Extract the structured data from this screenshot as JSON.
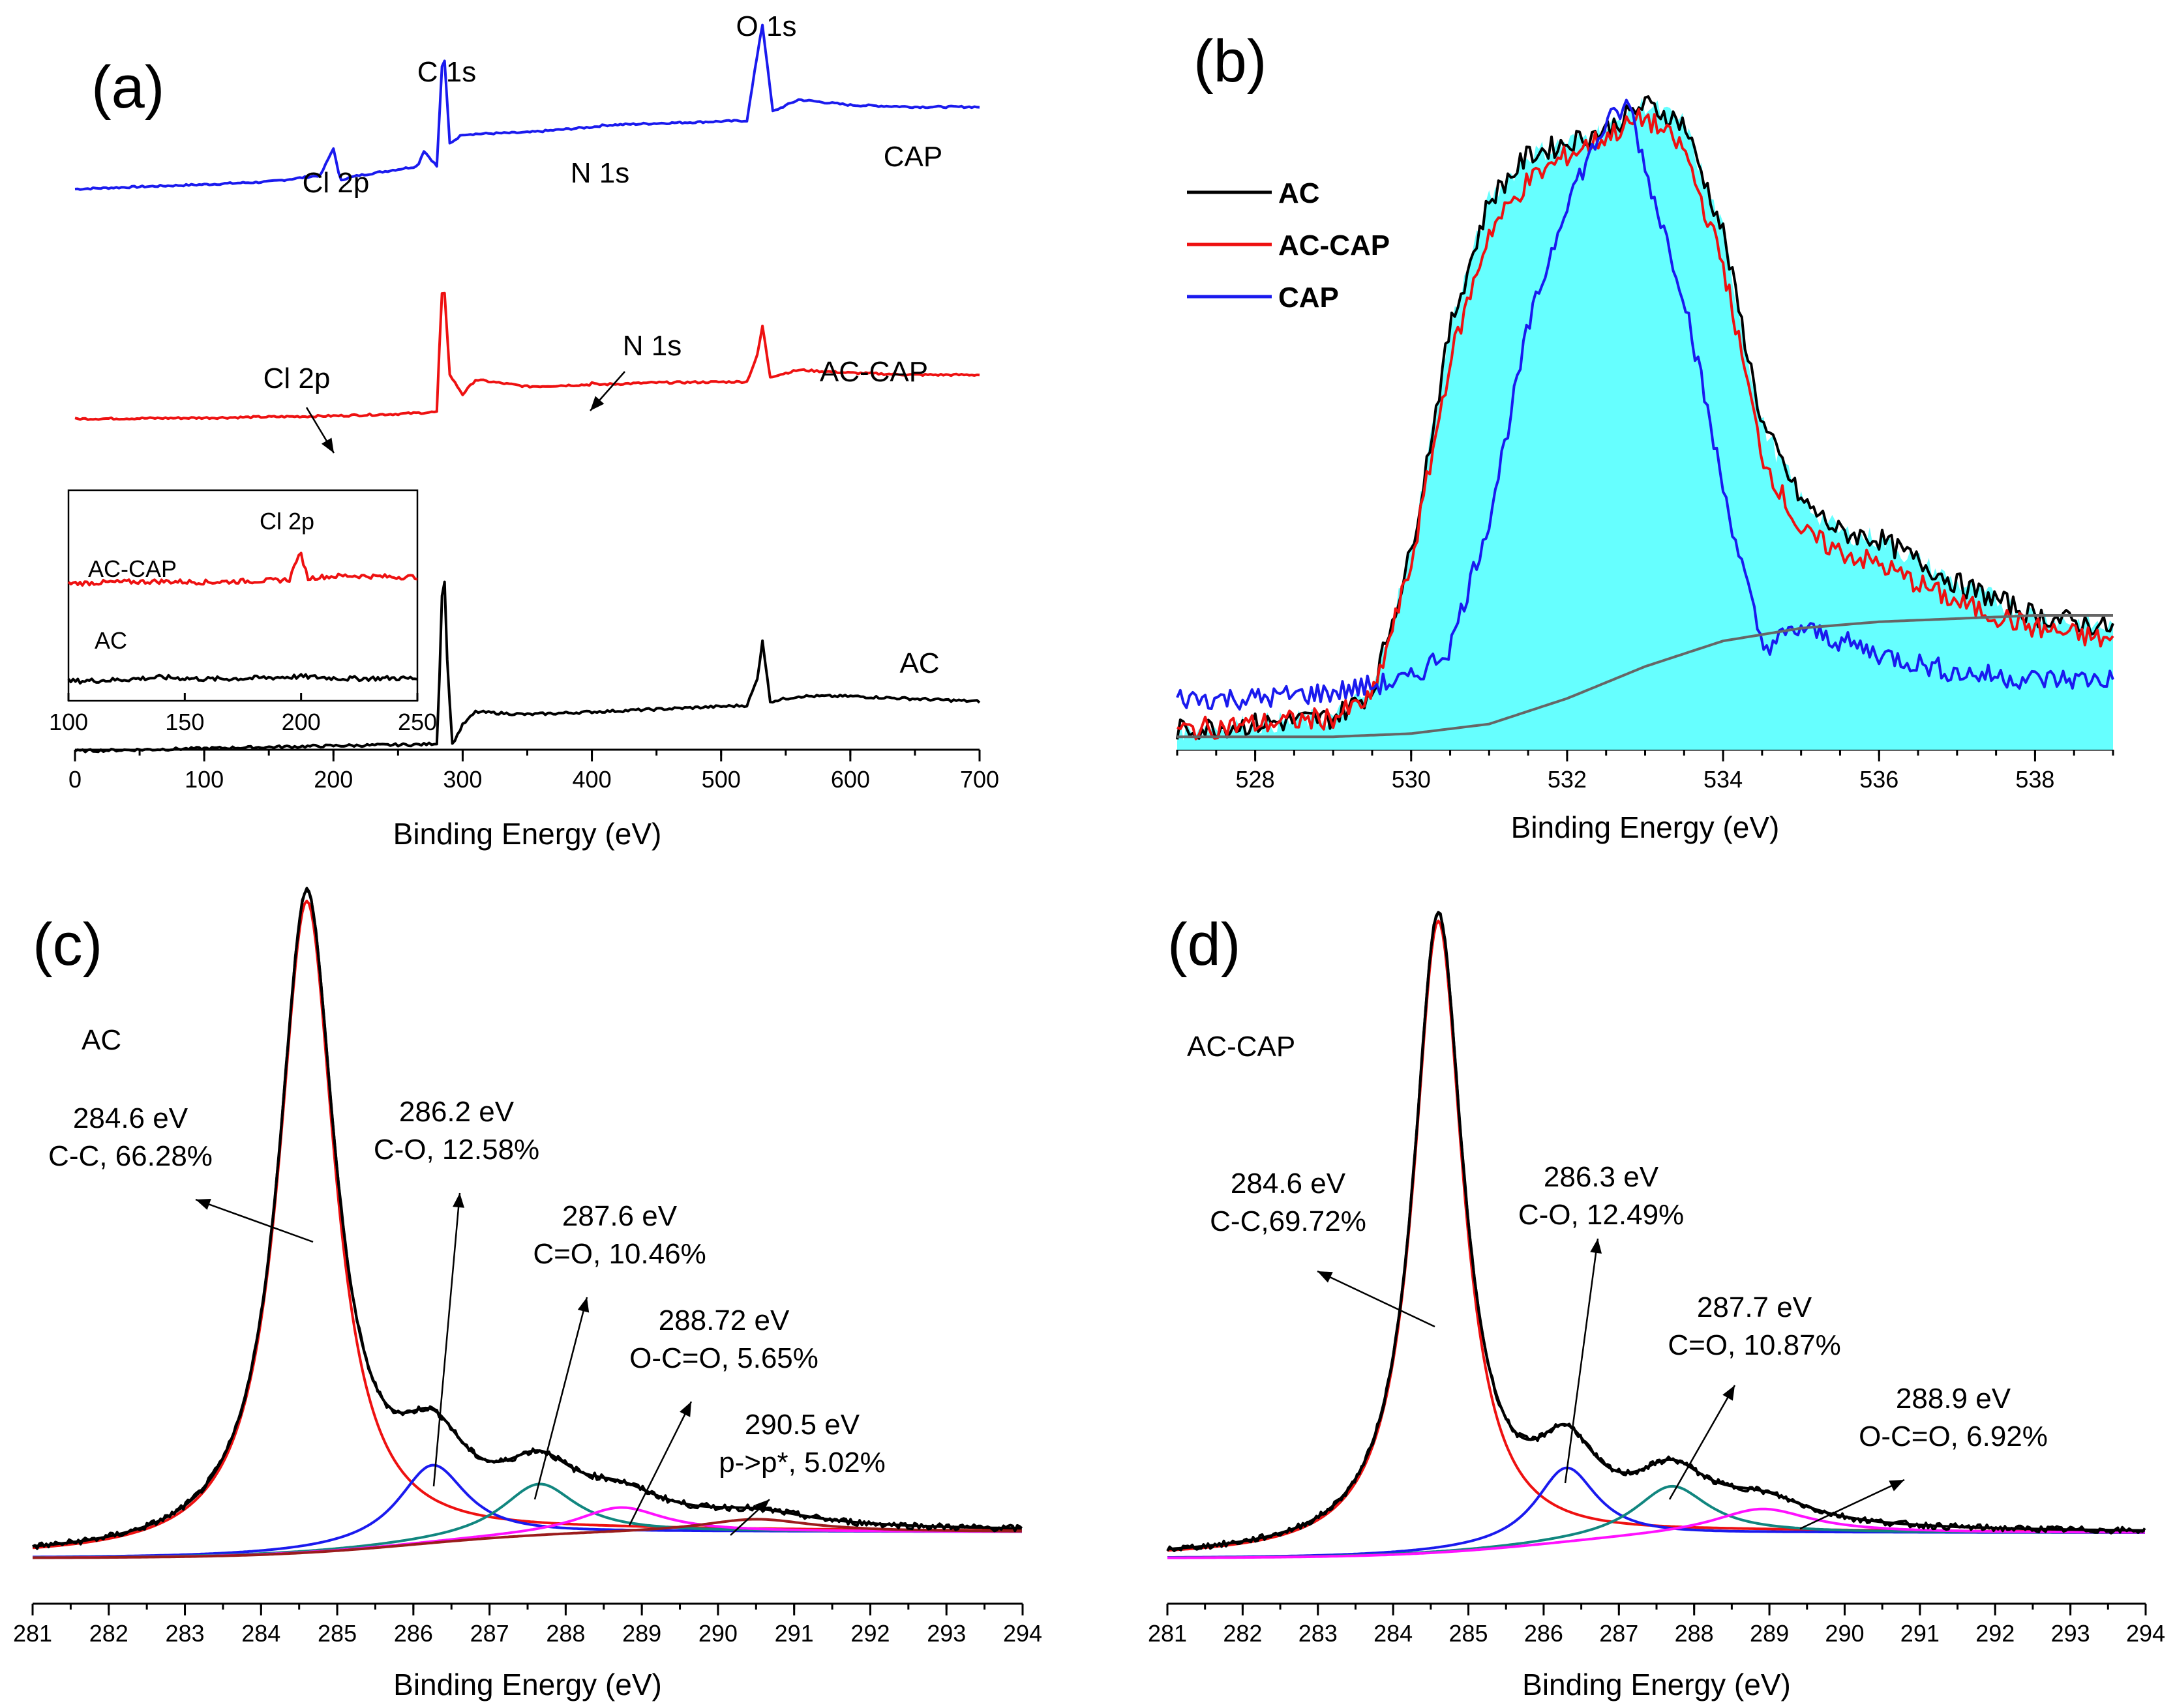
{
  "panels": {
    "a": {
      "label": "(a)"
    },
    "b": {
      "label": "(b)"
    },
    "c": {
      "label": "(c)"
    },
    "d": {
      "label": "(d)"
    }
  },
  "colors": {
    "AC": "#000000",
    "AC-CAP": "#ee1111",
    "CAP": "#1a1aee",
    "fill": "#66ffff",
    "background": "#666666",
    "comp_co": "#1a1aee",
    "comp_c_o": "#11867f",
    "comp_occo": "#ff10ff",
    "comp_pi": "#9b1c1c"
  },
  "chart_data": [
    {
      "id": "a",
      "type": "line",
      "xlabel": "Binding Energy (eV)",
      "xlim": [
        0,
        700
      ],
      "xticks": [
        0,
        100,
        200,
        300,
        400,
        500,
        600,
        700
      ],
      "y_axis_visible": false,
      "series": [
        {
          "name": "CAP",
          "x": [
            0,
            100,
            150,
            190,
            200,
            205,
            220,
            265,
            270,
            280,
            285,
            290,
            300,
            350,
            400,
            410,
            450,
            520,
            530,
            532,
            540,
            560,
            600,
            650,
            700
          ],
          "y": [
            1.0,
            1.05,
            1.08,
            1.15,
            1.45,
            1.1,
            1.15,
            1.25,
            1.42,
            1.25,
            2.62,
            1.5,
            1.6,
            1.62,
            1.68,
            1.7,
            1.72,
            1.75,
            2.65,
            2.8,
            1.85,
            1.98,
            1.92,
            1.9,
            1.9
          ]
        },
        {
          "name": "AC-CAP",
          "x": [
            0,
            100,
            150,
            200,
            250,
            280,
            283,
            285,
            290,
            300,
            310,
            350,
            398,
            400,
            403,
            450,
            520,
            528,
            532,
            538,
            560,
            600,
            650,
            700
          ],
          "y": [
            0.55,
            0.56,
            0.57,
            0.58,
            0.6,
            0.62,
            1.6,
            2.05,
            1.0,
            0.8,
            0.95,
            0.88,
            0.9,
            0.92,
            0.9,
            0.92,
            0.93,
            1.2,
            1.5,
            0.98,
            1.05,
            1.02,
            1.0,
            1.0
          ]
        },
        {
          "name": "AC",
          "x": [
            0,
            100,
            200,
            270,
            280,
            283,
            285,
            288,
            292,
            300,
            310,
            350,
            400,
            450,
            520,
            528,
            532,
            538,
            560,
            600,
            650,
            700
          ],
          "y": [
            0.0,
            0.02,
            0.04,
            0.05,
            0.06,
            0.8,
            1.6,
            0.7,
            0.05,
            0.2,
            0.3,
            0.28,
            0.3,
            0.32,
            0.35,
            0.55,
            0.85,
            0.38,
            0.42,
            0.42,
            0.4,
            0.38
          ]
        }
      ],
      "series_labels": [
        "CAP",
        "AC-CAP",
        "AC"
      ],
      "annotations": [
        "Cl 2p",
        "C 1s",
        "N 1s",
        "O 1s",
        "Cl 2p",
        "N 1s"
      ],
      "inset": {
        "xlim": [
          100,
          250
        ],
        "xticks": [
          100,
          150,
          200,
          250
        ],
        "title": "Cl 2p",
        "series": [
          {
            "name": "AC-CAP",
            "x": [
              100,
              120,
              140,
              160,
              180,
              190,
              195,
              198,
              200,
              203,
              208,
              220,
              240,
              250
            ],
            "y": [
              1.0,
              1.05,
              1.08,
              1.05,
              1.1,
              1.12,
              1.15,
              1.9,
              2.1,
              1.2,
              1.25,
              1.3,
              1.25,
              1.25
            ]
          },
          {
            "name": "AC",
            "x": [
              100,
              120,
              140,
              160,
              180,
              200,
              220,
              240,
              250
            ],
            "y": [
              0.0,
              0.05,
              0.15,
              0.08,
              0.12,
              0.18,
              0.1,
              0.12,
              0.1
            ]
          }
        ]
      }
    },
    {
      "id": "b",
      "type": "area",
      "xlabel": "Binding Energy (eV)",
      "xlim": [
        527,
        539
      ],
      "xticks": [
        528,
        530,
        532,
        534,
        536,
        538
      ],
      "y_axis_visible": false,
      "legend": {
        "placement": "top-left",
        "entries": [
          "AC",
          "AC-CAP",
          "CAP"
        ]
      },
      "series": [
        {
          "name": "AC",
          "x": [
            527,
            528,
            529,
            529.5,
            530,
            530.5,
            531,
            531.5,
            532,
            532.5,
            533,
            533.5,
            534,
            534.5,
            535,
            535.5,
            536,
            537,
            538,
            539
          ],
          "y": [
            0.02,
            0.03,
            0.04,
            0.08,
            0.3,
            0.65,
            0.85,
            0.92,
            0.94,
            0.96,
            1.0,
            0.97,
            0.8,
            0.5,
            0.38,
            0.33,
            0.32,
            0.25,
            0.2,
            0.18
          ]
        },
        {
          "name": "AC-CAP",
          "x": [
            527,
            528,
            529,
            529.5,
            530,
            530.5,
            531,
            531.5,
            532,
            532.5,
            533,
            533.5,
            534,
            534.5,
            535,
            535.5,
            536,
            537,
            538,
            539
          ],
          "y": [
            0.02,
            0.03,
            0.04,
            0.07,
            0.28,
            0.6,
            0.8,
            0.88,
            0.92,
            0.95,
            0.98,
            0.93,
            0.75,
            0.45,
            0.33,
            0.3,
            0.28,
            0.22,
            0.18,
            0.16
          ]
        },
        {
          "name": "CAP",
          "x": [
            527,
            528,
            529,
            530,
            530.5,
            531,
            531.5,
            532,
            532.5,
            532.8,
            533,
            533.5,
            534,
            534.5,
            535,
            536,
            537,
            538,
            539
          ],
          "y": [
            0.07,
            0.07,
            0.08,
            0.1,
            0.15,
            0.35,
            0.65,
            0.85,
            0.97,
            1.0,
            0.9,
            0.7,
            0.4,
            0.15,
            0.18,
            0.14,
            0.11,
            0.1,
            0.1
          ]
        },
        {
          "name": "",
          "x": [
            527,
            529,
            530,
            531,
            532,
            533,
            534,
            535,
            536,
            537,
            538,
            539
          ],
          "y": [
            0.01,
            0.01,
            0.015,
            0.03,
            0.07,
            0.12,
            0.16,
            0.18,
            0.19,
            0.195,
            0.2,
            0.2
          ]
        }
      ]
    },
    {
      "id": "c",
      "type": "line",
      "xlabel": "Binding Energy (eV)",
      "xlim": [
        281,
        294
      ],
      "xticks": [
        281,
        282,
        283,
        284,
        285,
        286,
        287,
        288,
        289,
        290,
        291,
        292,
        293,
        294
      ],
      "y_axis_visible": false,
      "sample_label": "AC",
      "peaks": [
        {
          "center": 284.6,
          "height": 1.0,
          "width": 0.45,
          "color": "#ee1111"
        },
        {
          "center": 286.25,
          "height": 0.12,
          "width": 0.55,
          "color": "#1a1aee"
        },
        {
          "center": 287.65,
          "height": 0.08,
          "width": 0.6,
          "color": "#11867f"
        },
        {
          "center": 288.72,
          "height": 0.04,
          "width": 0.7,
          "color": "#ff10ff"
        },
        {
          "center": 290.5,
          "height": 0.02,
          "width": 0.9,
          "color": "#9b1c1c"
        }
      ],
      "annotations": [
        {
          "line1": "284.6 eV",
          "line2": "C-C, 66.28%"
        },
        {
          "line1": "286.2 eV",
          "line2": "C-O, 12.58%"
        },
        {
          "line1": "287.6 eV",
          "line2": "C=O, 10.46%"
        },
        {
          "line1": "288.72 eV",
          "line2": "O-C=O, 5.65%"
        },
        {
          "line1": "290.5 eV",
          "line2": "p->p*, 5.02%"
        }
      ]
    },
    {
      "id": "d",
      "type": "line",
      "xlabel": "Binding Energy (eV)",
      "xlim": [
        281,
        294
      ],
      "xticks": [
        281,
        282,
        283,
        284,
        285,
        286,
        287,
        288,
        289,
        290,
        291,
        292,
        293,
        294
      ],
      "y_axis_visible": false,
      "sample_label": "AC-CAP",
      "peaks": [
        {
          "center": 284.6,
          "height": 1.0,
          "width": 0.4,
          "color": "#ee1111"
        },
        {
          "center": 286.3,
          "height": 0.12,
          "width": 0.5,
          "color": "#1a1aee"
        },
        {
          "center": 287.7,
          "height": 0.08,
          "width": 0.6,
          "color": "#11867f"
        },
        {
          "center": 288.9,
          "height": 0.04,
          "width": 0.8,
          "color": "#ff10ff"
        }
      ],
      "annotations": [
        {
          "line1": "284.6 eV",
          "line2": "C-C,69.72%"
        },
        {
          "line1": "286.3 eV",
          "line2": "C-O, 12.49%"
        },
        {
          "line1": "287.7 eV",
          "line2": "C=O, 10.87%"
        },
        {
          "line1": "288.9 eV",
          "line2": "O-C=O, 6.92%"
        }
      ]
    }
  ]
}
